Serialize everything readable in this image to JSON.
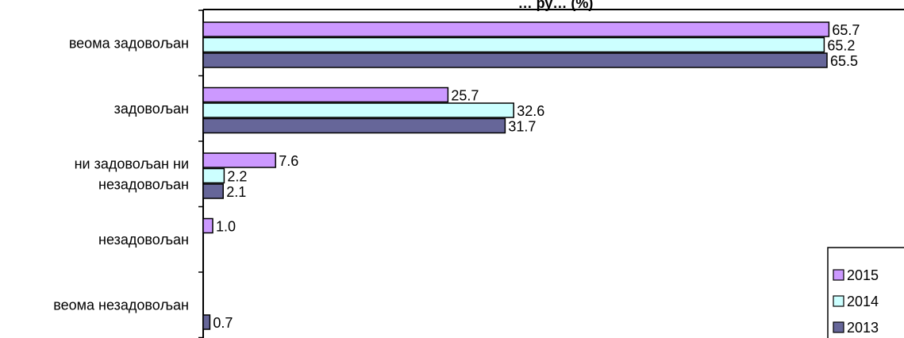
{
  "chart_data": {
    "type": "bar",
    "orientation": "horizontal",
    "title": "… ру… (%)",
    "categories": [
      [
        "веома задовољан"
      ],
      [
        "задовољан"
      ],
      [
        "ни задовољан ни",
        "незадовољан"
      ],
      [
        "незадовољан"
      ],
      [
        "веома незадовољан"
      ]
    ],
    "series": [
      {
        "name": "2015",
        "color": "#cc99ff",
        "values": [
          65.7,
          25.7,
          7.6,
          1.0,
          null
        ]
      },
      {
        "name": "2014",
        "color": "#ccffff",
        "values": [
          65.2,
          32.6,
          2.2,
          null,
          null
        ]
      },
      {
        "name": "2013",
        "color": "#666699",
        "values": [
          65.5,
          31.7,
          2.1,
          null,
          0.7
        ]
      }
    ],
    "value_labels": [
      [
        "65.7",
        "25.7",
        "7.6",
        "1.0",
        ""
      ],
      [
        "65.2",
        "32.6",
        "2.2",
        "",
        ""
      ],
      [
        "65.5",
        "31.7",
        "2.1",
        "",
        "0.7"
      ]
    ],
    "xlim": [
      0,
      70
    ],
    "grid": false,
    "legend": "bottom-right",
    "legend_order": [
      0,
      1,
      2
    ]
  }
}
